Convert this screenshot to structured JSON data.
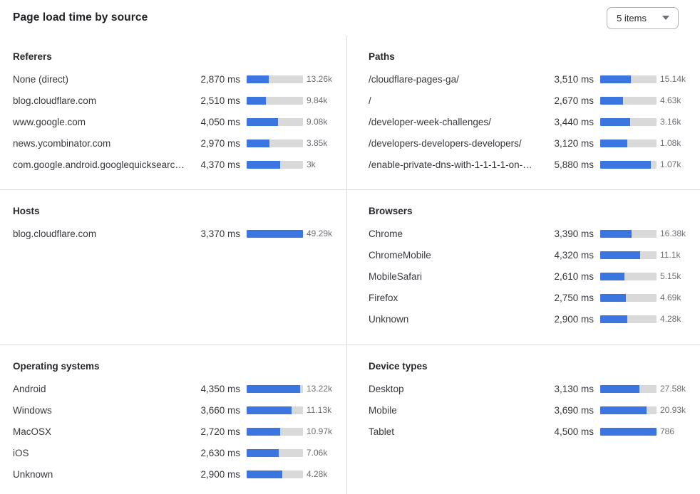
{
  "header": {
    "title": "Page load time by source",
    "items_select": {
      "label": "5 items"
    }
  },
  "colors": {
    "bar_fill": "#3a75e0",
    "bar_track": "#d9d9d9",
    "divider": "#dadcde"
  },
  "chart_data": {
    "type": "bar",
    "title": "Page load time by source",
    "unit": "ms",
    "legend_position": "none",
    "panels": [
      {
        "title": "Referers",
        "bar_scale_max_ms": 7300,
        "rows": [
          {
            "label": "None (direct)",
            "ms": 2870,
            "ms_display": "2,870 ms",
            "count": "13.26k"
          },
          {
            "label": "blog.cloudflare.com",
            "ms": 2510,
            "ms_display": "2,510 ms",
            "count": "9.84k"
          },
          {
            "label": "www.google.com",
            "ms": 4050,
            "ms_display": "4,050 ms",
            "count": "9.08k"
          },
          {
            "label": "news.ycombinator.com",
            "ms": 2970,
            "ms_display": "2,970 ms",
            "count": "3.85k"
          },
          {
            "label": "com.google.android.googlequicksearc…",
            "ms": 4370,
            "ms_display": "4,370 ms",
            "count": "3k"
          }
        ]
      },
      {
        "title": "Paths",
        "bar_scale_max_ms": 6500,
        "rows": [
          {
            "label": "/cloudflare-pages-ga/",
            "ms": 3510,
            "ms_display": "3,510 ms",
            "count": "15.14k"
          },
          {
            "label": "/",
            "ms": 2670,
            "ms_display": "2,670 ms",
            "count": "4.63k"
          },
          {
            "label": "/developer-week-challenges/",
            "ms": 3440,
            "ms_display": "3,440 ms",
            "count": "3.16k"
          },
          {
            "label": "/developers-developers-developers/",
            "ms": 3120,
            "ms_display": "3,120 ms",
            "count": "1.08k"
          },
          {
            "label": "/enable-private-dns-with-1-1-1-1-on-…",
            "ms": 5880,
            "ms_display": "5,880 ms",
            "count": "1.07k"
          }
        ]
      },
      {
        "title": "Hosts",
        "bar_scale_max_ms": 3370,
        "rows": [
          {
            "label": "blog.cloudflare.com",
            "ms": 3370,
            "ms_display": "3,370 ms",
            "count": "49.29k"
          }
        ]
      },
      {
        "title": "Browsers",
        "bar_scale_max_ms": 6100,
        "rows": [
          {
            "label": "Chrome",
            "ms": 3390,
            "ms_display": "3,390 ms",
            "count": "16.38k"
          },
          {
            "label": "ChromeMobile",
            "ms": 4320,
            "ms_display": "4,320 ms",
            "count": "11.1k"
          },
          {
            "label": "MobileSafari",
            "ms": 2610,
            "ms_display": "2,610 ms",
            "count": "5.15k"
          },
          {
            "label": "Firefox",
            "ms": 2750,
            "ms_display": "2,750 ms",
            "count": "4.69k"
          },
          {
            "label": "Unknown",
            "ms": 2900,
            "ms_display": "2,900 ms",
            "count": "4.28k"
          }
        ]
      },
      {
        "title": "Operating systems",
        "bar_scale_max_ms": 4600,
        "rows": [
          {
            "label": "Android",
            "ms": 4350,
            "ms_display": "4,350 ms",
            "count": "13.22k"
          },
          {
            "label": "Windows",
            "ms": 3660,
            "ms_display": "3,660 ms",
            "count": "11.13k"
          },
          {
            "label": "MacOSX",
            "ms": 2720,
            "ms_display": "2,720 ms",
            "count": "10.97k"
          },
          {
            "label": "iOS",
            "ms": 2630,
            "ms_display": "2,630 ms",
            "count": "7.06k"
          },
          {
            "label": "Unknown",
            "ms": 2900,
            "ms_display": "2,900 ms",
            "count": "4.28k"
          }
        ]
      },
      {
        "title": "Device types",
        "bar_scale_max_ms": 4500,
        "rows": [
          {
            "label": "Desktop",
            "ms": 3130,
            "ms_display": "3,130 ms",
            "count": "27.58k"
          },
          {
            "label": "Mobile",
            "ms": 3690,
            "ms_display": "3,690 ms",
            "count": "20.93k"
          },
          {
            "label": "Tablet",
            "ms": 4500,
            "ms_display": "4,500 ms",
            "count": "786"
          }
        ]
      }
    ]
  }
}
